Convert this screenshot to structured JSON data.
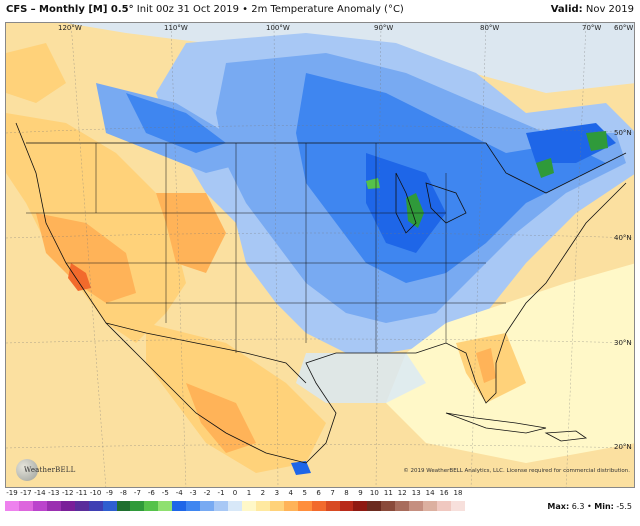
{
  "header": {
    "model": "CFS",
    "product": "Monthly [M] 0.5°",
    "init": "Init 00z 31 Oct 2019",
    "variable": "2m Temperature Anomaly (°C)",
    "valid_label": "Valid:",
    "valid_value": "Nov 2019"
  },
  "longitudes": [
    "120°W",
    "110°W",
    "100°W",
    "90°W",
    "80°W",
    "70°W",
    "60°W"
  ],
  "latitudes": [
    "50°N",
    "40°N",
    "30°N",
    "20°N"
  ],
  "logo_text": "WeatherBELL",
  "copyright": "© 2019 WeatherBELL Analytics, LLC. License required for commercial distribution.",
  "colorbar": {
    "labels": [
      "-19",
      "-17",
      "-14",
      "-13",
      "-12",
      "-11",
      "-10",
      "-9",
      "-8",
      "-7",
      "-6",
      "-5",
      "-4",
      "-3",
      "-2",
      "-1",
      "0",
      "1",
      "2",
      "3",
      "4",
      "5",
      "6",
      "7",
      "8",
      "9",
      "10",
      "11",
      "12",
      "13",
      "14",
      "16",
      "18"
    ],
    "colors": [
      "#ee82ee",
      "#dd66dd",
      "#bb44cc",
      "#9a2fb0",
      "#7a1f99",
      "#5a2d9b",
      "#3f3fb3",
      "#2f5fd0",
      "#1f6f2f",
      "#2f9a3a",
      "#55c24a",
      "#8fe070",
      "#1e66e8",
      "#3f86f0",
      "#78aaf2",
      "#a8c8f5",
      "#d8e8f8",
      "#fff8c8",
      "#ffe9a0",
      "#ffd27a",
      "#ffb358",
      "#ff8e3c",
      "#f26a2c",
      "#d84a22",
      "#b82a1a",
      "#8f1a12",
      "#6b2b1f",
      "#8a4a3a",
      "#a86c5c",
      "#c58f80",
      "#dcb0a0",
      "#f0c8c0",
      "#f7e0dc"
    ]
  },
  "stats": {
    "max_label": "Max:",
    "max": "6.3",
    "min_label": "Min:",
    "min": "-5.5"
  }
}
